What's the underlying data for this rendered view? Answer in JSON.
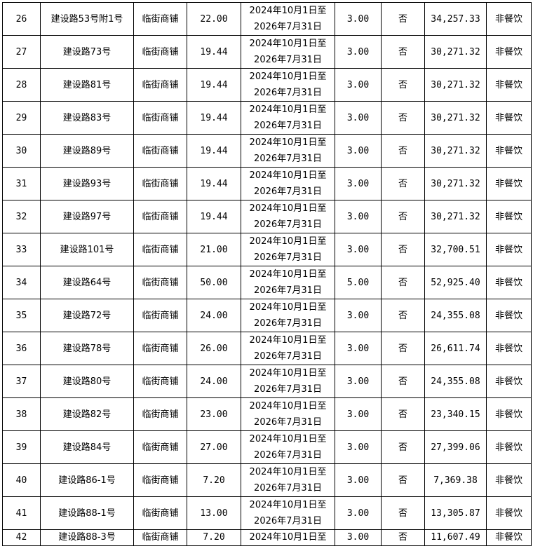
{
  "rows": [
    {
      "no": "26",
      "address": "建设路53号附1号",
      "type": "临街商铺",
      "area": "22.00",
      "period_start": "2024年10月1日至",
      "period_end": "2026年7月31日",
      "years": "3.00",
      "flag": "否",
      "price": "34,257.33",
      "use": "非餐饮"
    },
    {
      "no": "27",
      "address": "建设路73号",
      "type": "临街商铺",
      "area": "19.44",
      "period_start": "2024年10月1日至",
      "period_end": "2026年7月31日",
      "years": "3.00",
      "flag": "否",
      "price": "30,271.32",
      "use": "非餐饮"
    },
    {
      "no": "28",
      "address": "建设路81号",
      "type": "临街商铺",
      "area": "19.44",
      "period_start": "2024年10月1日至",
      "period_end": "2026年7月31日",
      "years": "3.00",
      "flag": "否",
      "price": "30,271.32",
      "use": "非餐饮"
    },
    {
      "no": "29",
      "address": "建设路83号",
      "type": "临街商铺",
      "area": "19.44",
      "period_start": "2024年10月1日至",
      "period_end": "2026年7月31日",
      "years": "3.00",
      "flag": "否",
      "price": "30,271.32",
      "use": "非餐饮"
    },
    {
      "no": "30",
      "address": "建设路89号",
      "type": "临街商铺",
      "area": "19.44",
      "period_start": "2024年10月1日至",
      "period_end": "2026年7月31日",
      "years": "3.00",
      "flag": "否",
      "price": "30,271.32",
      "use": "非餐饮"
    },
    {
      "no": "31",
      "address": "建设路93号",
      "type": "临街商铺",
      "area": "19.44",
      "period_start": "2024年10月1日至",
      "period_end": "2026年7月31日",
      "years": "3.00",
      "flag": "否",
      "price": "30,271.32",
      "use": "非餐饮"
    },
    {
      "no": "32",
      "address": "建设路97号",
      "type": "临街商铺",
      "area": "19.44",
      "period_start": "2024年10月1日至",
      "period_end": "2026年7月31日",
      "years": "3.00",
      "flag": "否",
      "price": "30,271.32",
      "use": "非餐饮"
    },
    {
      "no": "33",
      "address": "建设路101号",
      "type": "临街商铺",
      "area": "21.00",
      "period_start": "2024年10月1日至",
      "period_end": "2026年7月31日",
      "years": "3.00",
      "flag": "否",
      "price": "32,700.51",
      "use": "非餐饮"
    },
    {
      "no": "34",
      "address": "建设路64号",
      "type": "临街商铺",
      "area": "50.00",
      "period_start": "2024年10月1日至",
      "period_end": "2026年7月31日",
      "years": "5.00",
      "flag": "否",
      "price": "52,925.40",
      "use": "非餐饮"
    },
    {
      "no": "35",
      "address": "建设路72号",
      "type": "临街商铺",
      "area": "24.00",
      "period_start": "2024年10月1日至",
      "period_end": "2026年7月31日",
      "years": "3.00",
      "flag": "否",
      "price": "24,355.08",
      "use": "非餐饮"
    },
    {
      "no": "36",
      "address": "建设路78号",
      "type": "临街商铺",
      "area": "26.00",
      "period_start": "2024年10月1日至",
      "period_end": "2026年7月31日",
      "years": "3.00",
      "flag": "否",
      "price": "26,611.74",
      "use": "非餐饮"
    },
    {
      "no": "37",
      "address": "建设路80号",
      "type": "临街商铺",
      "area": "24.00",
      "period_start": "2024年10月1日至",
      "period_end": "2026年7月31日",
      "years": "3.00",
      "flag": "否",
      "price": "24,355.08",
      "use": "非餐饮"
    },
    {
      "no": "38",
      "address": "建设路82号",
      "type": "临街商铺",
      "area": "23.00",
      "period_start": "2024年10月1日至",
      "period_end": "2026年7月31日",
      "years": "3.00",
      "flag": "否",
      "price": "23,340.15",
      "use": "非餐饮"
    },
    {
      "no": "39",
      "address": "建设路84号",
      "type": "临街商铺",
      "area": "27.00",
      "period_start": "2024年10月1日至",
      "period_end": "2026年7月31日",
      "years": "3.00",
      "flag": "否",
      "price": "27,399.06",
      "use": "非餐饮"
    },
    {
      "no": "40",
      "address": "建设路86-1号",
      "type": "临街商铺",
      "area": "7.20",
      "period_start": "2024年10月1日至",
      "period_end": "2026年7月31日",
      "years": "3.00",
      "flag": "否",
      "price": "7,369.38",
      "use": "非餐饮"
    },
    {
      "no": "41",
      "address": "建设路88-1号",
      "type": "临街商铺",
      "area": "13.00",
      "period_start": "2024年10月1日至",
      "period_end": "2026年7月31日",
      "years": "3.00",
      "flag": "否",
      "price": "13,305.87",
      "use": "非餐饮"
    },
    {
      "no": "42",
      "address": "建设路88-3号",
      "type": "临街商铺",
      "area": "7.20",
      "period_start": "2024年10月1日至",
      "years": "3.00",
      "flag": "否",
      "price": "11,607.49",
      "use": "非餐饮"
    }
  ]
}
